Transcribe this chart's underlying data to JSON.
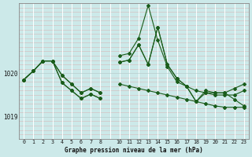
{
  "title": "Graphe pression niveau de la mer (hPa)",
  "bg_color": "#cce9e9",
  "line_color": "#1a5c1a",
  "xlim": [
    -0.5,
    23.5
  ],
  "ylim": [
    1018.5,
    1021.6
  ],
  "ytick_vals": [
    1019,
    1020
  ],
  "xtick_vals": [
    0,
    1,
    2,
    3,
    4,
    5,
    6,
    7,
    8,
    10,
    11,
    12,
    13,
    14,
    15,
    16,
    17,
    18,
    19,
    20,
    21,
    22,
    23
  ],
  "vgrid_color": "#ffffff",
  "hgrid_color": "#b8d8d8",
  "series": [
    {
      "x": [
        0,
        1,
        2,
        3,
        4,
        5,
        6,
        7,
        8
      ],
      "y": [
        1019.85,
        1020.05,
        1020.28,
        1020.28,
        1019.78,
        1019.6,
        1019.42,
        1019.52,
        1019.42
      ]
    },
    {
      "x": [
        0,
        1,
        2,
        3,
        4,
        5,
        6,
        7,
        8
      ],
      "y": [
        1019.85,
        1020.05,
        1020.28,
        1020.28,
        1019.95,
        1019.75,
        1019.55,
        1019.65,
        1019.55
      ]
    },
    {
      "x": [
        0,
        1,
        2,
        3,
        4,
        5,
        6,
        7,
        8
      ],
      "y": [
        1019.85,
        1020.05,
        1020.28,
        1020.28,
        1019.78,
        1019.6,
        1019.42,
        1019.52,
        1019.42
      ]
    },
    {
      "x": [
        0,
        1,
        2,
        3,
        4,
        5,
        6,
        7,
        8
      ],
      "y": [
        1019.85,
        1020.05,
        1020.28,
        1020.28,
        1019.95,
        1019.75,
        1019.55,
        1019.65,
        1019.55
      ]
    }
  ],
  "series2": [
    {
      "x": [
        10,
        11,
        12,
        13,
        14,
        15,
        16,
        17,
        18,
        19,
        20,
        21,
        22,
        23
      ],
      "y": [
        1020.25,
        1020.3,
        1020.65,
        1020.2,
        1021.05,
        1020.2,
        1019.88,
        1019.7,
        1019.6,
        1019.55,
        1019.5,
        1019.5,
        1019.5,
        1019.6
      ]
    },
    {
      "x": [
        10,
        11,
        12,
        13,
        14,
        15,
        16,
        17,
        18,
        19,
        20,
        21,
        22,
        23
      ],
      "y": [
        1020.4,
        1020.45,
        1020.8,
        1021.55,
        1020.75,
        1020.15,
        1019.8,
        1019.7,
        1019.35,
        1019.55,
        1019.55,
        1019.55,
        1019.65,
        1019.75
      ]
    },
    {
      "x": [
        10,
        11,
        12,
        13,
        14,
        15,
        16,
        17,
        18,
        19,
        20,
        21,
        22,
        23
      ],
      "y": [
        1020.25,
        1020.3,
        1020.65,
        1020.2,
        1021.05,
        1020.2,
        1019.88,
        1019.7,
        1019.35,
        1019.6,
        1019.55,
        1019.55,
        1019.4,
        1019.25
      ]
    },
    {
      "x": [
        10,
        11,
        12,
        13,
        14,
        15,
        16,
        17,
        18,
        19,
        20,
        21,
        22,
        23
      ],
      "y": [
        1019.75,
        1019.7,
        1019.65,
        1019.6,
        1019.55,
        1019.5,
        1019.45,
        1019.4,
        1019.35,
        1019.3,
        1019.25,
        1019.22,
        1019.22,
        1019.22
      ]
    }
  ]
}
